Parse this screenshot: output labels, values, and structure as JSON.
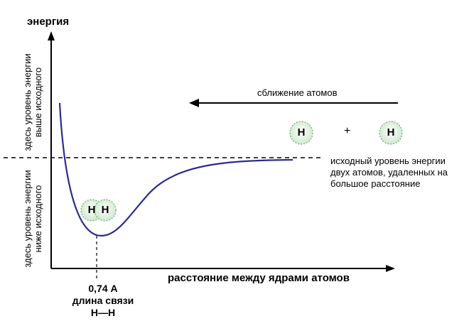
{
  "axes": {
    "y_title": "энергия",
    "x_title": "расстояние между ядрами атомов"
  },
  "regions": {
    "above": [
      "здесь уровень энергии",
      "выше исходного"
    ],
    "below": [
      "здесь уровень энергии",
      "ниже исходного"
    ]
  },
  "approach_label": "сближение атомов",
  "baseline_note": [
    "исходный уровень энергии",
    "двух атомов, удаленных на",
    "большое расстояние"
  ],
  "bond_length": {
    "value": "0,74 А",
    "label": "длина связи",
    "bond": "Н—Н"
  },
  "atoms": {
    "molecule": [
      "Н",
      "Н"
    ],
    "separate_left": "Н",
    "plus": "+",
    "separate_right": "Н"
  },
  "colors": {
    "curve": "#2b2b8f",
    "atom_fill": "#e4f2e4",
    "atom_stroke": "#6fa86f"
  }
}
